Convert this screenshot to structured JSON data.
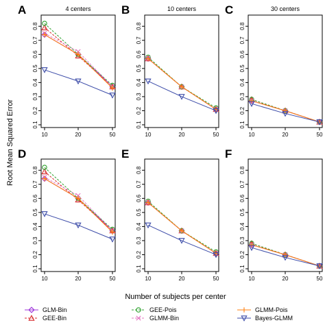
{
  "figure": {
    "ylabel": "Root Mean Squared Error",
    "xlabel": "Number of subjects per center"
  },
  "legend": [
    {
      "name": "GLM-Bin",
      "color": "#9b30d9",
      "marker": "diamond",
      "dash": "solid"
    },
    {
      "name": "GEE-Bin",
      "color": "#d62728",
      "marker": "triangle",
      "dash": "dashed"
    },
    {
      "name": "GEE-Pois",
      "color": "#2ca02c",
      "marker": "circle",
      "dash": "dashed"
    },
    {
      "name": "GLMM-Bin",
      "color": "#e377c2",
      "marker": "x",
      "dash": "dashed"
    },
    {
      "name": "GLMM-Pois",
      "color": "#ff7f0e",
      "marker": "plus",
      "dash": "solid"
    },
    {
      "name": "Bayes-GLMM",
      "color": "#3b4ba8",
      "marker": "triangle-down",
      "dash": "solid"
    }
  ],
  "chart_data": [
    {
      "type": "line",
      "panel_label": "A",
      "title": "4 centers",
      "categories": [
        "10",
        "20",
        "50"
      ],
      "ylim": [
        0.1,
        0.85
      ],
      "yticks": [
        "0.1",
        "0.2",
        "0.3",
        "0.4",
        "0.5",
        "0.6",
        "0.7",
        "0.8"
      ],
      "series": [
        {
          "name": "GLM-Bin",
          "values": [
            0.74,
            0.6,
            0.37
          ]
        },
        {
          "name": "GEE-Bin",
          "values": [
            0.79,
            0.59,
            0.37
          ]
        },
        {
          "name": "GEE-Pois",
          "values": [
            0.82,
            0.6,
            0.38
          ]
        },
        {
          "name": "GLMM-Bin",
          "values": [
            0.75,
            0.62,
            0.37
          ]
        },
        {
          "name": "GLMM-Pois",
          "values": [
            0.74,
            0.6,
            0.36
          ]
        },
        {
          "name": "Bayes-GLMM",
          "values": [
            0.49,
            0.41,
            0.31
          ]
        }
      ]
    },
    {
      "type": "line",
      "panel_label": "B",
      "title": "10 centers",
      "categories": [
        "10",
        "20",
        "50"
      ],
      "ylim": [
        0.1,
        0.85
      ],
      "yticks": [
        "0.1",
        "0.2",
        "0.3",
        "0.4",
        "0.5",
        "0.6",
        "0.7",
        "0.8"
      ],
      "series": [
        {
          "name": "GLM-Bin",
          "values": [
            0.57,
            0.37,
            0.21
          ]
        },
        {
          "name": "GEE-Bin",
          "values": [
            0.57,
            0.37,
            0.21
          ]
        },
        {
          "name": "GEE-Pois",
          "values": [
            0.58,
            0.37,
            0.22
          ]
        },
        {
          "name": "GLMM-Bin",
          "values": [
            0.57,
            0.37,
            0.21
          ]
        },
        {
          "name": "GLMM-Pois",
          "values": [
            0.57,
            0.37,
            0.21
          ]
        },
        {
          "name": "Bayes-GLMM",
          "values": [
            0.41,
            0.3,
            0.2
          ]
        }
      ]
    },
    {
      "type": "line",
      "panel_label": "C",
      "title": "30 centers",
      "categories": [
        "10",
        "20",
        "50"
      ],
      "ylim": [
        0.1,
        0.85
      ],
      "yticks": [
        "0.1",
        "0.2",
        "0.3",
        "0.4",
        "0.5",
        "0.6",
        "0.7",
        "0.8"
      ],
      "series": [
        {
          "name": "GLM-Bin",
          "values": [
            0.27,
            0.2,
            0.12
          ]
        },
        {
          "name": "GEE-Bin",
          "values": [
            0.28,
            0.2,
            0.12
          ]
        },
        {
          "name": "GEE-Pois",
          "values": [
            0.28,
            0.2,
            0.12
          ]
        },
        {
          "name": "GLMM-Bin",
          "values": [
            0.27,
            0.2,
            0.12
          ]
        },
        {
          "name": "GLMM-Pois",
          "values": [
            0.27,
            0.2,
            0.12
          ]
        },
        {
          "name": "Bayes-GLMM",
          "values": [
            0.25,
            0.18,
            0.12
          ]
        }
      ]
    },
    {
      "type": "line",
      "panel_label": "D",
      "title": "",
      "categories": [
        "10",
        "20",
        "50"
      ],
      "ylim": [
        0.1,
        0.85
      ],
      "yticks": [
        "0.1",
        "0.2",
        "0.3",
        "0.4",
        "0.5",
        "0.6",
        "0.7",
        "0.8"
      ],
      "series": [
        {
          "name": "GLM-Bin",
          "values": [
            0.74,
            0.6,
            0.37
          ]
        },
        {
          "name": "GEE-Bin",
          "values": [
            0.79,
            0.59,
            0.37
          ]
        },
        {
          "name": "GEE-Pois",
          "values": [
            0.82,
            0.6,
            0.38
          ]
        },
        {
          "name": "GLMM-Bin",
          "values": [
            0.75,
            0.62,
            0.37
          ]
        },
        {
          "name": "GLMM-Pois",
          "values": [
            0.74,
            0.6,
            0.36
          ]
        },
        {
          "name": "Bayes-GLMM",
          "values": [
            0.49,
            0.41,
            0.31
          ]
        }
      ]
    },
    {
      "type": "line",
      "panel_label": "E",
      "title": "",
      "categories": [
        "10",
        "20",
        "50"
      ],
      "ylim": [
        0.1,
        0.85
      ],
      "yticks": [
        "0.1",
        "0.2",
        "0.3",
        "0.4",
        "0.5",
        "0.6",
        "0.7",
        "0.8"
      ],
      "series": [
        {
          "name": "GLM-Bin",
          "values": [
            0.57,
            0.37,
            0.21
          ]
        },
        {
          "name": "GEE-Bin",
          "values": [
            0.57,
            0.37,
            0.21
          ]
        },
        {
          "name": "GEE-Pois",
          "values": [
            0.58,
            0.37,
            0.22
          ]
        },
        {
          "name": "GLMM-Bin",
          "values": [
            0.57,
            0.37,
            0.21
          ]
        },
        {
          "name": "GLMM-Pois",
          "values": [
            0.57,
            0.37,
            0.21
          ]
        },
        {
          "name": "Bayes-GLMM",
          "values": [
            0.41,
            0.3,
            0.2
          ]
        }
      ]
    },
    {
      "type": "line",
      "panel_label": "F",
      "title": "",
      "categories": [
        "10",
        "20",
        "50"
      ],
      "ylim": [
        0.1,
        0.85
      ],
      "yticks": [
        "0.1",
        "0.2",
        "0.3",
        "0.4",
        "0.5",
        "0.6",
        "0.7",
        "0.8"
      ],
      "series": [
        {
          "name": "GLM-Bin",
          "values": [
            0.27,
            0.2,
            0.12
          ]
        },
        {
          "name": "GEE-Bin",
          "values": [
            0.28,
            0.2,
            0.12
          ]
        },
        {
          "name": "GEE-Pois",
          "values": [
            0.28,
            0.2,
            0.12
          ]
        },
        {
          "name": "GLMM-Bin",
          "values": [
            0.27,
            0.2,
            0.12
          ]
        },
        {
          "name": "GLMM-Pois",
          "values": [
            0.27,
            0.2,
            0.12
          ]
        },
        {
          "name": "Bayes-GLMM",
          "values": [
            0.25,
            0.18,
            0.12
          ]
        }
      ]
    }
  ]
}
